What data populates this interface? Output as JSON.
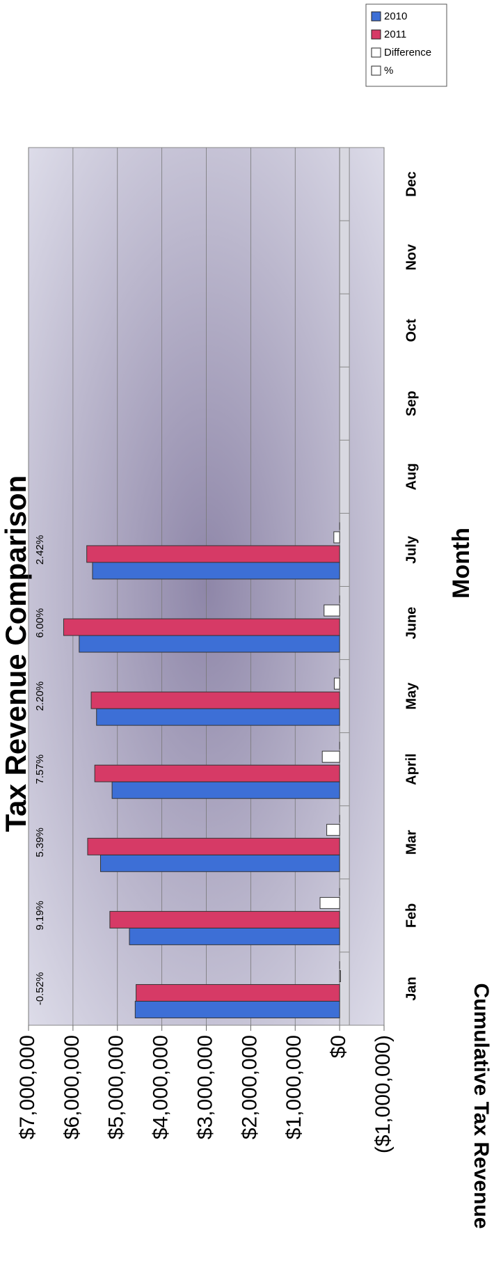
{
  "chart_data": {
    "type": "bar",
    "title": "Tax Revenue Comparison",
    "x_label": "Month",
    "y_label": "Cumulative Tax Revenue",
    "categories": [
      "Jan",
      "Feb",
      "Mar",
      "April",
      "May",
      "June",
      "July",
      "Aug",
      "Sep",
      "Oct",
      "Nov",
      "Dec"
    ],
    "series": [
      {
        "name": "2010",
        "color": "#3d6fd6",
        "values": [
          4600000,
          4730000,
          5380000,
          5120000,
          5470000,
          5860000,
          5560000,
          null,
          null,
          null,
          null,
          null
        ]
      },
      {
        "name": "2011",
        "color": "#d63a66",
        "values": [
          4580000,
          5170000,
          5670000,
          5510000,
          5590000,
          6210000,
          5690000,
          null,
          null,
          null,
          null,
          null
        ]
      },
      {
        "name": "Difference",
        "color": "#ffffff",
        "values": [
          -20000,
          440000,
          290000,
          390000,
          120000,
          350000,
          130000,
          null,
          null,
          null,
          null,
          null
        ]
      },
      {
        "name": "%",
        "color": "#ffffff",
        "values": [
          -0.52,
          9.19,
          5.39,
          7.57,
          2.2,
          6,
          2.42,
          null,
          null,
          null,
          null,
          null
        ],
        "value_labels": [
          "-0.52%",
          "9.19%",
          "5.39%",
          "7.57%",
          "2.20%",
          "6.00%",
          "2.42%",
          null,
          null,
          null,
          null,
          null
        ]
      }
    ],
    "ylim": [
      -1000000,
      7000000
    ],
    "yticks": [
      {
        "value": -1000000,
        "label": "($1,000,000)"
      },
      {
        "value": 0,
        "label": "$0"
      },
      {
        "value": 1000000,
        "label": "$1,000,000"
      },
      {
        "value": 2000000,
        "label": "$2,000,000"
      },
      {
        "value": 3000000,
        "label": "$3,000,000"
      },
      {
        "value": 4000000,
        "label": "$4,000,000"
      },
      {
        "value": 5000000,
        "label": "$5,000,000"
      },
      {
        "value": 6000000,
        "label": "$6,000,000"
      },
      {
        "value": 7000000,
        "label": "$7,000,000"
      }
    ],
    "grid": true,
    "legend": "top-right"
  }
}
